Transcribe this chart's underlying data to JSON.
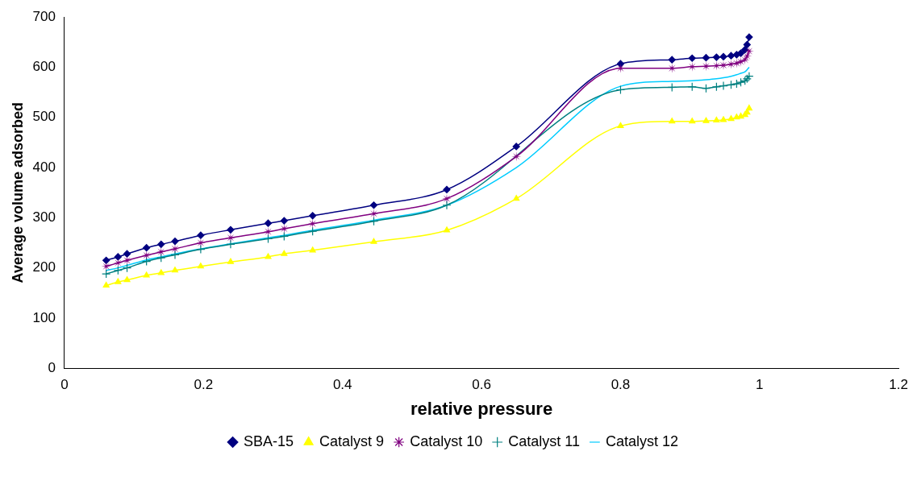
{
  "chart_data": {
    "type": "line",
    "xlabel": "relative pressure",
    "ylabel": "Average volume adsorbed",
    "x": [
      0.06,
      0.077,
      0.09,
      0.118,
      0.139,
      0.159,
      0.196,
      0.239,
      0.293,
      0.316,
      0.357,
      0.445,
      0.55,
      0.65,
      0.8,
      0.874,
      0.903,
      0.923,
      0.938,
      0.948,
      0.959,
      0.967,
      0.973,
      0.979,
      0.982,
      0.985
    ],
    "xlim": [
      0,
      1.2
    ],
    "xticks": [
      0,
      0.2,
      0.4,
      0.6,
      0.8,
      1,
      1.2
    ],
    "ylim": [
      0,
      700
    ],
    "yticks": [
      0,
      100,
      200,
      300,
      400,
      500,
      600,
      700
    ],
    "grid": false,
    "legend": "bottom",
    "series": [
      {
        "name": "SBA-15",
        "color": "#000080",
        "marker": "diamond",
        "values": [
          215,
          222,
          228,
          240,
          247,
          253,
          265,
          276,
          289,
          294,
          304,
          325,
          356,
          442,
          607,
          615,
          618,
          619,
          620,
          621,
          623,
          625,
          628,
          635,
          645,
          660
        ]
      },
      {
        "name": "Catalyst 9",
        "color": "#ffff00",
        "marker": "triangle",
        "values": [
          165,
          172,
          176,
          185,
          190,
          195,
          203,
          212,
          222,
          228,
          235,
          252,
          275,
          338,
          483,
          492,
          492,
          493,
          494,
          495,
          497,
          500,
          502,
          505,
          510,
          518
        ]
      },
      {
        "name": "Catalyst 10",
        "color": "#800080",
        "marker": "star",
        "values": [
          203,
          210,
          215,
          225,
          232,
          238,
          250,
          260,
          272,
          278,
          288,
          308,
          338,
          422,
          598,
          598,
          601,
          602,
          603,
          604,
          606,
          608,
          611,
          615,
          622,
          632
        ]
      },
      {
        "name": "Catalyst 11",
        "color": "#008080",
        "marker": "cross",
        "values": [
          188,
          195,
          200,
          213,
          220,
          226,
          237,
          247,
          258,
          263,
          273,
          293,
          325,
          null,
          555,
          560,
          561,
          558,
          561,
          563,
          565,
          567,
          570,
          573,
          577,
          582
        ]
      },
      {
        "name": "Catalyst 12",
        "color": "#00ccff",
        "marker": "none",
        "values": [
          195,
          200,
          205,
          216,
          222,
          228,
          238,
          248,
          260,
          265,
          275,
          295,
          325,
          400,
          562,
          572,
          573,
          575,
          577,
          579,
          582,
          585,
          588,
          591,
          595,
          600
        ]
      }
    ]
  }
}
